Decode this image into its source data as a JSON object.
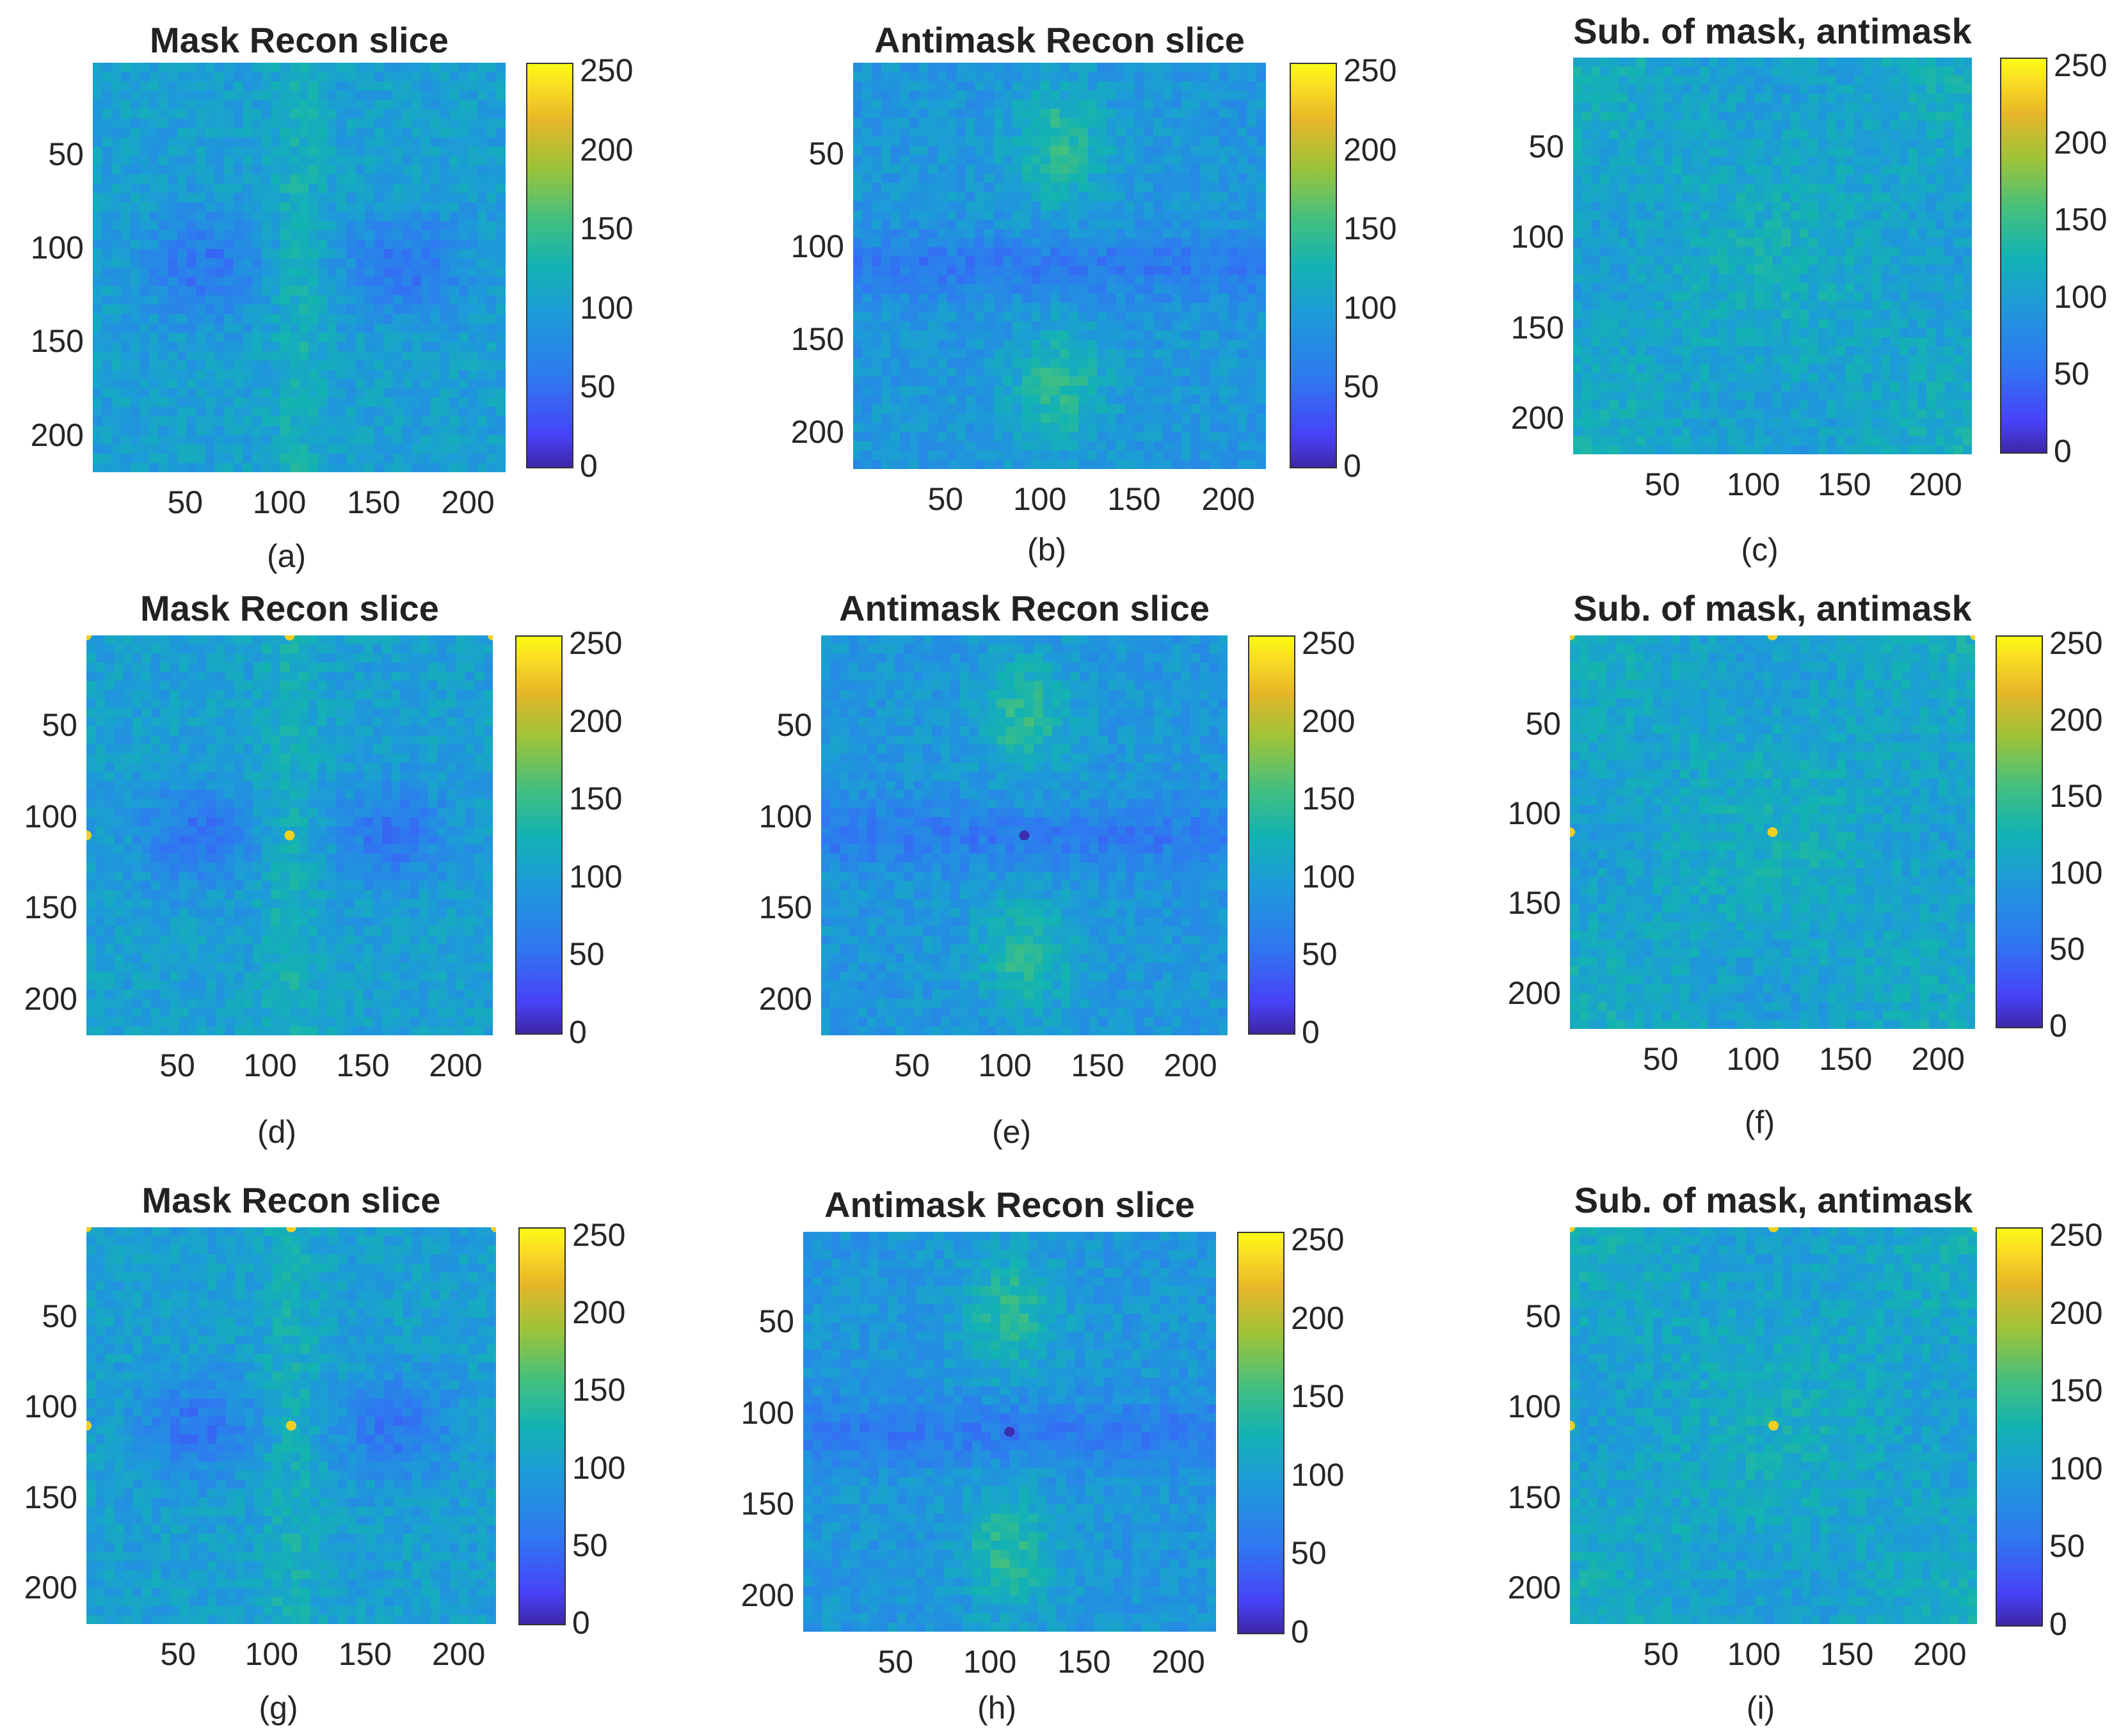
{
  "chart_data": [
    {
      "id": "a",
      "type": "heatmap",
      "title": "Mask Recon slice",
      "caption": "(a)",
      "xticks": [
        "50",
        "100",
        "150",
        "200"
      ],
      "yticks": [
        "50",
        "100",
        "150",
        "200"
      ],
      "xlim": [
        1,
        220
      ],
      "ylim": [
        1,
        220
      ],
      "clim": [
        0,
        255
      ],
      "cticks": [
        "0",
        "50",
        "100",
        "150",
        "200",
        "250"
      ],
      "colormap": "parula"
    },
    {
      "id": "b",
      "type": "heatmap",
      "title": "Antimask Recon slice",
      "caption": "(b)",
      "xticks": [
        "50",
        "100",
        "150",
        "200"
      ],
      "yticks": [
        "50",
        "100",
        "150",
        "200"
      ],
      "xlim": [
        1,
        220
      ],
      "ylim": [
        1,
        220
      ],
      "clim": [
        0,
        255
      ],
      "cticks": [
        "0",
        "50",
        "100",
        "150",
        "200",
        "250"
      ],
      "colormap": "parula"
    },
    {
      "id": "c",
      "type": "heatmap",
      "title": "Sub. of mask, antimask",
      "caption": "(c)",
      "xticks": [
        "50",
        "100",
        "150",
        "200"
      ],
      "yticks": [
        "50",
        "100",
        "150",
        "200"
      ],
      "xlim": [
        1,
        220
      ],
      "ylim": [
        1,
        220
      ],
      "clim": [
        0,
        255
      ],
      "cticks": [
        "0",
        "50",
        "100",
        "150",
        "200",
        "250"
      ],
      "colormap": "parula"
    },
    {
      "id": "d",
      "type": "heatmap",
      "title": "Mask Recon slice",
      "caption": "(d)",
      "xticks": [
        "50",
        "100",
        "150",
        "200"
      ],
      "yticks": [
        "50",
        "100",
        "150",
        "200"
      ],
      "xlim": [
        1,
        220
      ],
      "ylim": [
        1,
        220
      ],
      "clim": [
        0,
        255
      ],
      "cticks": [
        "0",
        "50",
        "100",
        "150",
        "200",
        "250"
      ],
      "colormap": "parula"
    },
    {
      "id": "e",
      "type": "heatmap",
      "title": "Antimask Recon slice",
      "caption": "(e)",
      "xticks": [
        "50",
        "100",
        "150",
        "200"
      ],
      "yticks": [
        "50",
        "100",
        "150",
        "200"
      ],
      "xlim": [
        1,
        220
      ],
      "ylim": [
        1,
        220
      ],
      "clim": [
        0,
        255
      ],
      "cticks": [
        "0",
        "50",
        "100",
        "150",
        "200",
        "250"
      ],
      "colormap": "parula"
    },
    {
      "id": "f",
      "type": "heatmap",
      "title": "Sub. of mask, antimask",
      "caption": "(f)",
      "xticks": [
        "50",
        "100",
        "150",
        "200"
      ],
      "yticks": [
        "50",
        "100",
        "150",
        "200"
      ],
      "xlim": [
        1,
        220
      ],
      "ylim": [
        1,
        220
      ],
      "clim": [
        0,
        255
      ],
      "cticks": [
        "0",
        "50",
        "100",
        "150",
        "200",
        "250"
      ],
      "colormap": "parula"
    },
    {
      "id": "g",
      "type": "heatmap",
      "title": "Mask Recon slice",
      "caption": "(g)",
      "xticks": [
        "50",
        "100",
        "150",
        "200"
      ],
      "yticks": [
        "50",
        "100",
        "150",
        "200"
      ],
      "xlim": [
        1,
        220
      ],
      "ylim": [
        1,
        220
      ],
      "clim": [
        0,
        255
      ],
      "cticks": [
        "0",
        "50",
        "100",
        "150",
        "200",
        "250"
      ],
      "colormap": "parula"
    },
    {
      "id": "h",
      "type": "heatmap",
      "title": "Antimask Recon slice",
      "caption": "(h)",
      "xticks": [
        "50",
        "100",
        "150",
        "200"
      ],
      "yticks": [
        "50",
        "100",
        "150",
        "200"
      ],
      "xlim": [
        1,
        220
      ],
      "ylim": [
        1,
        220
      ],
      "clim": [
        0,
        255
      ],
      "cticks": [
        "0",
        "50",
        "100",
        "150",
        "200",
        "250"
      ],
      "colormap": "parula"
    },
    {
      "id": "i",
      "type": "heatmap",
      "title": "Sub. of mask, antimask",
      "caption": "(i)",
      "xticks": [
        "50",
        "100",
        "150",
        "200"
      ],
      "yticks": [
        "50",
        "100",
        "150",
        "200"
      ],
      "xlim": [
        1,
        220
      ],
      "ylim": [
        1,
        220
      ],
      "clim": [
        0,
        255
      ],
      "cticks": [
        "0",
        "50",
        "100",
        "150",
        "200",
        "250"
      ],
      "colormap": "parula"
    }
  ]
}
